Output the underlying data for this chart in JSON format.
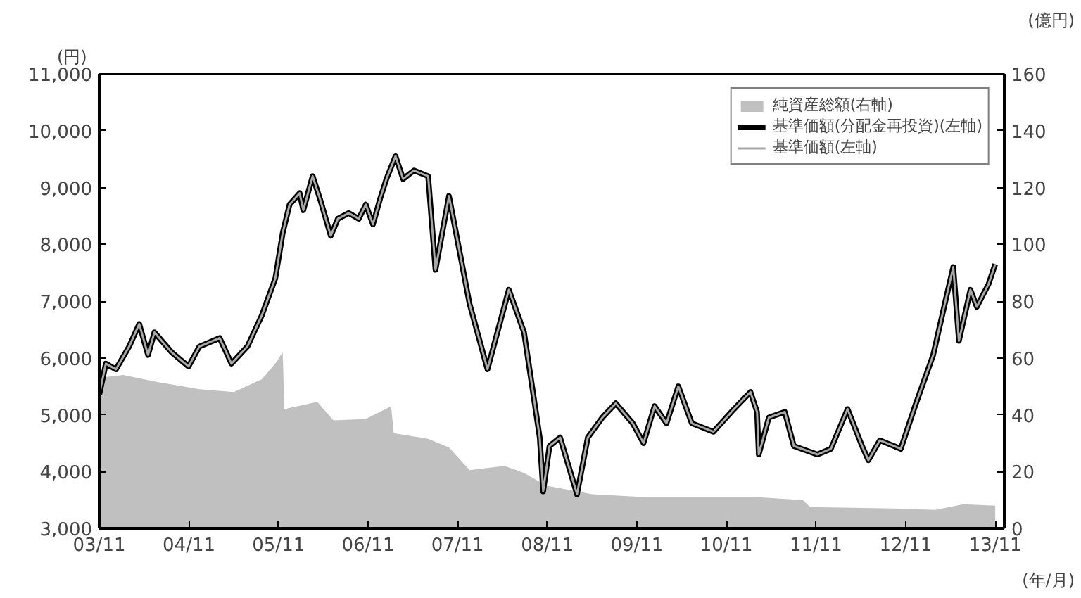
{
  "chart_data": {
    "type": "line",
    "ylabel": "(円)",
    "y2label": "(億円)",
    "xlabel": "(年/月)",
    "xlim": [
      "2003-11-01",
      "2013-12-08"
    ],
    "ylim": [
      3000,
      11000
    ],
    "yticks": [
      {
        "value": 3000,
        "label": "3,000"
      },
      {
        "value": 4000,
        "label": "4,000"
      },
      {
        "value": 5000,
        "label": "5,000"
      },
      {
        "value": 6000,
        "label": "6,000"
      },
      {
        "value": 7000,
        "label": "7,000"
      },
      {
        "value": 8000,
        "label": "8,000"
      },
      {
        "value": 9000,
        "label": "9,000"
      },
      {
        "value": 10000,
        "label": "10,000"
      },
      {
        "value": 11000,
        "label": "11,000"
      }
    ],
    "y2lim": [
      0,
      160
    ],
    "y2ticks": [
      0,
      20,
      40,
      60,
      80,
      100,
      120,
      140,
      160
    ],
    "xticks": [
      {
        "value": "2003-11-01",
        "label": "03/11"
      },
      {
        "value": "2004-11-01",
        "label": "04/11"
      },
      {
        "value": "2005-11-01",
        "label": "05/11"
      },
      {
        "value": "2006-11-01",
        "label": "06/11"
      },
      {
        "value": "2007-11-01",
        "label": "07/11"
      },
      {
        "value": "2008-11-01",
        "label": "08/11"
      },
      {
        "value": "2009-11-01",
        "label": "09/11"
      },
      {
        "value": "2010-11-01",
        "label": "10/11"
      },
      {
        "value": "2011-11-01",
        "label": "11/11"
      },
      {
        "value": "2012-11-01",
        "label": "12/11"
      },
      {
        "value": "2013-11-01",
        "label": "13/11"
      }
    ],
    "legend": "top right",
    "series": [
      {
        "name": "純資産総額(右軸)",
        "type": "area",
        "axis": "y2",
        "color": "#c0c0c0",
        "x": [
          "2003-11-01",
          "2004-02-07",
          "2004-06-24",
          "2004-12-13",
          "2005-05-03",
          "2005-08-25",
          "2005-10-19",
          "2005-11-18",
          "2005-11-25",
          "2006-04-08",
          "2006-06-13",
          "2006-10-23",
          "2007-02-03",
          "2007-02-14",
          "2007-07-04",
          "2007-09-27",
          "2007-12-20",
          "2008-05-10",
          "2008-07-29",
          "2008-10-30",
          "2009-05-03",
          "2009-11-28",
          "2011-02-25",
          "2011-09-09",
          "2011-10-08",
          "2012-09-13",
          "2013-03-02",
          "2013-06-24",
          "2013-11-01"
        ],
        "values": [
          53,
          54,
          51.5,
          49,
          48,
          52.5,
          58,
          62,
          42,
          44.5,
          38,
          38.5,
          43,
          33.5,
          31.5,
          28.5,
          20.5,
          22,
          19.5,
          15,
          12,
          11,
          11,
          10,
          7.5,
          7,
          6.5,
          8.5,
          8
        ]
      },
      {
        "name": "基準価額(分配金再投資)(左軸)",
        "color": "#000000",
        "x": [
          "2003-11-01",
          "2003-11-28",
          "2004-01-08",
          "2004-03-02",
          "2004-04-12",
          "2004-05-18",
          "2004-06-13",
          "2004-08-22",
          "2004-10-30",
          "2004-12-13",
          "2005-03-06",
          "2005-04-23",
          "2005-06-27",
          "2005-08-25",
          "2005-10-19",
          "2005-11-18",
          "2005-12-16",
          "2006-01-26",
          "2006-02-10",
          "2006-03-20",
          "2006-04-19",
          "2006-06-02",
          "2006-07-01",
          "2006-08-14",
          "2006-09-24",
          "2006-10-23",
          "2006-11-21",
          "2006-12-20",
          "2007-01-15",
          "2007-02-21",
          "2007-03-24",
          "2007-05-07",
          "2007-07-04",
          "2007-08-03",
          "2007-09-27",
          "2007-12-20",
          "2008-03-02",
          "2008-05-28",
          "2008-07-29",
          "2008-10-01",
          "2008-10-15",
          "2008-11-10",
          "2008-12-23",
          "2009-03-02",
          "2009-04-15",
          "2009-06-13",
          "2009-08-07",
          "2009-10-15",
          "2009-11-28",
          "2010-01-12",
          "2010-03-02",
          "2010-04-19",
          "2010-06-13",
          "2010-09-09",
          "2010-12-02",
          "2011-02-07",
          "2011-03-06",
          "2011-03-13",
          "2011-04-23",
          "2011-06-27",
          "2011-08-03",
          "2011-11-07",
          "2012-01-01",
          "2012-03-09",
          "2012-05-07",
          "2012-06-02",
          "2012-07-19",
          "2012-10-12",
          "2012-12-09",
          "2013-02-21",
          "2013-04-12",
          "2013-05-14",
          "2013-06-06",
          "2013-07-23",
          "2013-08-18",
          "2013-10-05",
          "2013-11-01"
        ],
        "values": [
          5350,
          5900,
          5800,
          6200,
          6600,
          6050,
          6450,
          6100,
          5850,
          6200,
          6350,
          5900,
          6200,
          6750,
          7400,
          8200,
          8700,
          8900,
          8600,
          9200,
          8800,
          8150,
          8450,
          8550,
          8450,
          8700,
          8350,
          8800,
          9150,
          9550,
          9150,
          9300,
          9200,
          7550,
          8850,
          6950,
          5800,
          7200,
          6450,
          4600,
          3650,
          4450,
          4600,
          3600,
          4600,
          4950,
          5200,
          4850,
          4500,
          5150,
          4850,
          5500,
          4850,
          4700,
          5100,
          5400,
          5050,
          4300,
          4950,
          5050,
          4450,
          4300,
          4400,
          5100,
          4450,
          4200,
          4550,
          4400,
          5150,
          6050,
          7000,
          7600,
          6300,
          7200,
          6900,
          7300,
          7650
        ]
      },
      {
        "name": "基準価額(左軸)",
        "color": "#a8a8a8",
        "x": [
          "2003-11-01",
          "2003-11-28",
          "2004-01-08",
          "2004-03-02",
          "2004-04-12",
          "2004-05-18",
          "2004-06-13",
          "2004-08-22",
          "2004-10-30",
          "2004-12-13",
          "2005-03-06",
          "2005-04-23",
          "2005-06-27",
          "2005-08-25",
          "2005-10-19",
          "2005-11-18",
          "2005-12-16",
          "2006-01-26",
          "2006-02-10",
          "2006-03-20",
          "2006-04-19",
          "2006-06-02",
          "2006-07-01",
          "2006-08-14",
          "2006-09-24",
          "2006-10-23",
          "2006-11-21",
          "2006-12-20",
          "2007-01-15",
          "2007-02-21",
          "2007-03-24",
          "2007-05-07",
          "2007-07-04",
          "2007-08-03",
          "2007-09-27",
          "2007-12-20",
          "2008-03-02",
          "2008-05-28",
          "2008-07-29",
          "2008-10-01",
          "2008-10-15",
          "2008-11-10",
          "2008-12-23",
          "2009-03-02",
          "2009-04-15",
          "2009-06-13",
          "2009-08-07",
          "2009-10-15",
          "2009-11-28",
          "2010-01-12",
          "2010-03-02",
          "2010-04-19",
          "2010-06-13",
          "2010-09-09",
          "2010-12-02",
          "2011-02-07",
          "2011-03-06",
          "2011-03-13",
          "2011-04-23",
          "2011-06-27",
          "2011-08-03",
          "2011-11-07",
          "2012-01-01",
          "2012-03-09",
          "2012-05-07",
          "2012-06-02",
          "2012-07-19",
          "2012-10-12",
          "2012-12-09",
          "2013-02-21",
          "2013-04-12",
          "2013-05-14",
          "2013-06-06",
          "2013-07-23",
          "2013-08-18",
          "2013-10-05",
          "2013-11-01"
        ],
        "values": [
          5350,
          5900,
          5800,
          6200,
          6600,
          6050,
          6450,
          6100,
          5850,
          6200,
          6350,
          5900,
          6200,
          6750,
          7400,
          8200,
          8700,
          8900,
          8600,
          9200,
          8800,
          8150,
          8450,
          8550,
          8450,
          8700,
          8350,
          8800,
          9150,
          9550,
          9150,
          9300,
          9200,
          7550,
          8850,
          6950,
          5800,
          7200,
          6450,
          4600,
          3650,
          4450,
          4600,
          3600,
          4600,
          4950,
          5200,
          4850,
          4500,
          5150,
          4850,
          5500,
          4850,
          4700,
          5100,
          5400,
          5050,
          4300,
          4950,
          5050,
          4450,
          4300,
          4400,
          5100,
          4450,
          4200,
          4550,
          4400,
          5150,
          6050,
          7000,
          7600,
          6300,
          7200,
          6900,
          7300,
          7650
        ]
      }
    ]
  }
}
